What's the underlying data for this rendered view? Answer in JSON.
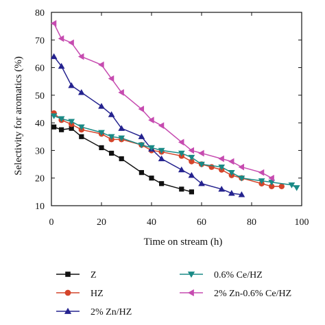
{
  "chart_data": {
    "type": "line",
    "title": "",
    "xlabel": "Time on stream (h)",
    "ylabel": "Selectivity for aromatics (%)",
    "xlim": [
      0,
      100
    ],
    "ylim": [
      10,
      80
    ],
    "xticks": [
      0,
      20,
      40,
      60,
      80,
      100
    ],
    "yticks": [
      10,
      20,
      30,
      40,
      50,
      60,
      70,
      80
    ],
    "grid": false,
    "legend_position": "bottom",
    "series": [
      {
        "name": "Z",
        "color": "#111111",
        "marker": "square",
        "x": [
          1,
          4,
          8,
          12,
          20,
          24,
          28,
          36,
          40,
          44,
          52,
          56
        ],
        "y": [
          38.5,
          37.5,
          38,
          35,
          31,
          29,
          27,
          22,
          20,
          18,
          16,
          15
        ]
      },
      {
        "name": "HZ",
        "color": "#d4442a",
        "marker": "circle",
        "x": [
          1,
          4,
          8,
          12,
          20,
          24,
          28,
          36,
          40,
          44,
          52,
          56,
          60,
          64,
          68,
          72,
          76,
          84,
          88,
          92
        ],
        "y": [
          43.5,
          41,
          39.5,
          37.5,
          36,
          34,
          34,
          32,
          30,
          29.5,
          28,
          26,
          25,
          24,
          23,
          21,
          20,
          18,
          17,
          17
        ]
      },
      {
        "name": "2% Zn/HZ",
        "color": "#25238f",
        "marker": "triangle-up",
        "x": [
          1,
          4,
          8,
          12,
          20,
          24,
          28,
          36,
          40,
          44,
          52,
          56,
          60,
          68,
          72,
          76
        ],
        "y": [
          64,
          60.5,
          53.5,
          51,
          46,
          43,
          38,
          35,
          30.5,
          27,
          23,
          21,
          18,
          16,
          14.5,
          14
        ]
      },
      {
        "name": "0.6% Ce/HZ",
        "color": "#1a8a86",
        "marker": "triangle-down",
        "x": [
          1,
          4,
          8,
          12,
          20,
          24,
          28,
          36,
          40,
          44,
          52,
          56,
          60,
          68,
          72,
          76,
          84,
          88,
          96,
          98
        ],
        "y": [
          42.5,
          41.5,
          40.5,
          38.5,
          36.5,
          35,
          34.5,
          32,
          31,
          30,
          29,
          27.5,
          25,
          24,
          22,
          20,
          19,
          18.5,
          17.5,
          16.5
        ]
      },
      {
        "name": "2% Zn-0.6% Ce/HZ",
        "color": "#c64bb0",
        "marker": "triangle-left",
        "x": [
          1,
          4,
          8,
          12,
          20,
          24,
          28,
          36,
          40,
          44,
          52,
          56,
          60,
          68,
          72,
          76,
          84,
          88
        ],
        "y": [
          76,
          70.5,
          69,
          64,
          61,
          56,
          51,
          45,
          41,
          39,
          33,
          30,
          29,
          27,
          26,
          24,
          22,
          20
        ]
      }
    ]
  }
}
